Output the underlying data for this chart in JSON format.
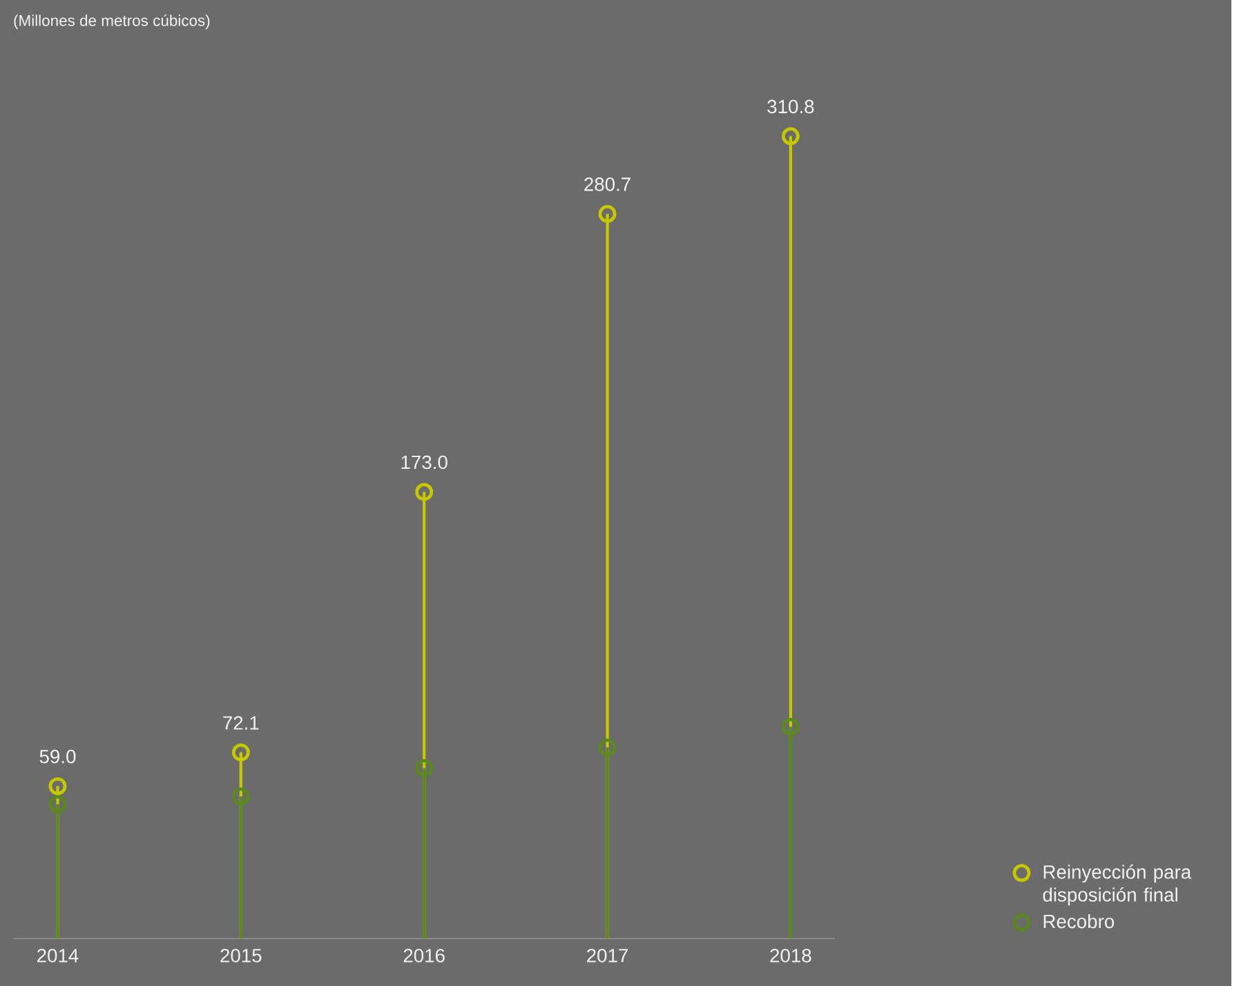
{
  "chart_data": {
    "type": "lollipop",
    "annotations": [
      "(Millones de metros cúbicos)"
    ],
    "categories": [
      "2014",
      "2015",
      "2016",
      "2017",
      "2018"
    ],
    "series": [
      {
        "name": "Reinyección para disposición final",
        "color": "#c8c800",
        "values": [
          59.0,
          72.1,
          173.0,
          280.7,
          310.8
        ],
        "value_labels": [
          "59.0",
          "72.1",
          "173.0",
          "280.7",
          "310.8"
        ]
      },
      {
        "name": "Recobro",
        "color": "#5a8a1e",
        "values": [
          52,
          55,
          66,
          74,
          82
        ]
      }
    ],
    "marker": "circle",
    "legend": "bottom right"
  }
}
